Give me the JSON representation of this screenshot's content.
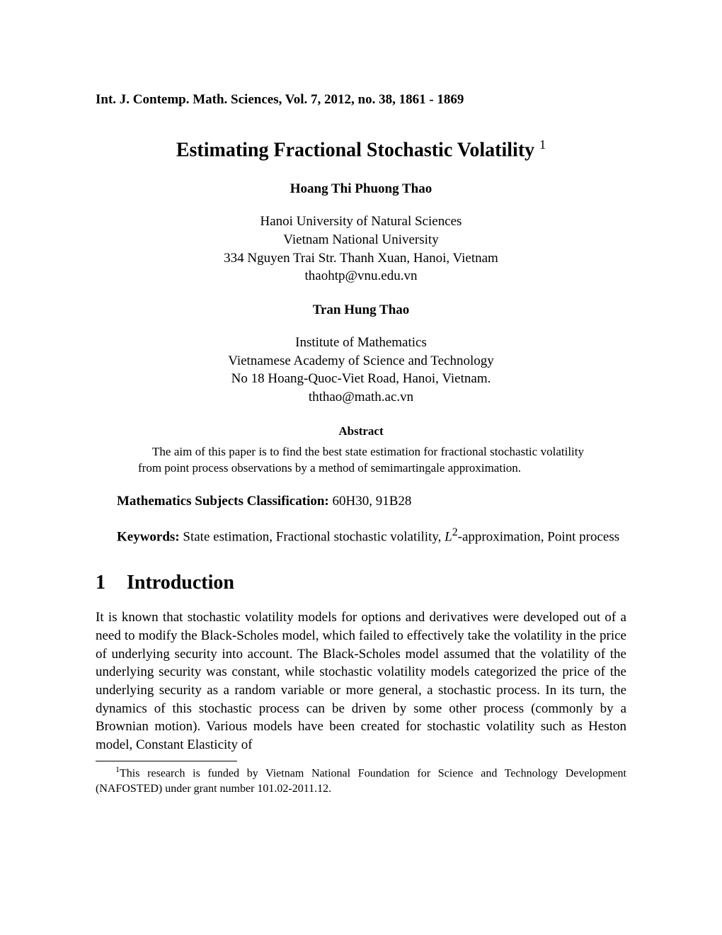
{
  "journal_header": "Int. J. Contemp. Math. Sciences, Vol. 7, 2012, no. 38, 1861 - 1869",
  "title": "Estimating Fractional Stochastic Volatility",
  "title_footnote_marker": "1",
  "authors": [
    {
      "name": "Hoang Thi Phuong Thao",
      "affiliation_lines": [
        "Hanoi University of Natural Sciences",
        "Vietnam National University",
        "334 Nguyen Trai Str. Thanh Xuan, Hanoi, Vietnam",
        "thaohtp@vnu.edu.vn"
      ]
    },
    {
      "name": "Tran Hung Thao",
      "affiliation_lines": [
        "Institute of Mathematics",
        "Vietnamese Academy of Science and Technology",
        "No 18 Hoang-Quoc-Viet Road, Hanoi, Vietnam.",
        "ththao@math.ac.vn"
      ]
    }
  ],
  "abstract": {
    "heading": "Abstract",
    "body": "The aim of this paper is to find the best state estimation for fractional stochastic volatility from point process observations by a method of semimartingale approximation."
  },
  "classification": {
    "label": "Mathematics Subjects Classification:",
    "value": "60H30, 91B28"
  },
  "keywords": {
    "label": "Keywords:",
    "prefix": "State estimation, Fractional stochastic volatility, ",
    "math_symbol": "L",
    "math_sup": "2",
    "suffix": "-approximation, Point process"
  },
  "section": {
    "number": "1",
    "title": "Introduction"
  },
  "body_paragraph": "It is known that stochastic volatility models for options and derivatives were developed out of a need to modify the Black-Scholes model, which failed to effectively take the volatility in the price of underlying security into account. The Black-Scholes model assumed that the volatility of the underlying security was constant, while stochastic volatility models categorized the price of the underlying security as a random variable or more general, a stochastic process. In its turn, the dynamics of this stochastic process can be driven by some other process (commonly by a Brownian motion). Various models have been created for stochastic volatility such as Heston model, Constant Elasticity of",
  "footnote": {
    "marker": "1",
    "text": "This research is funded by Vietnam National Foundation for Science and Technology Development (NAFOSTED) under grant number 101.02-2011.12."
  }
}
